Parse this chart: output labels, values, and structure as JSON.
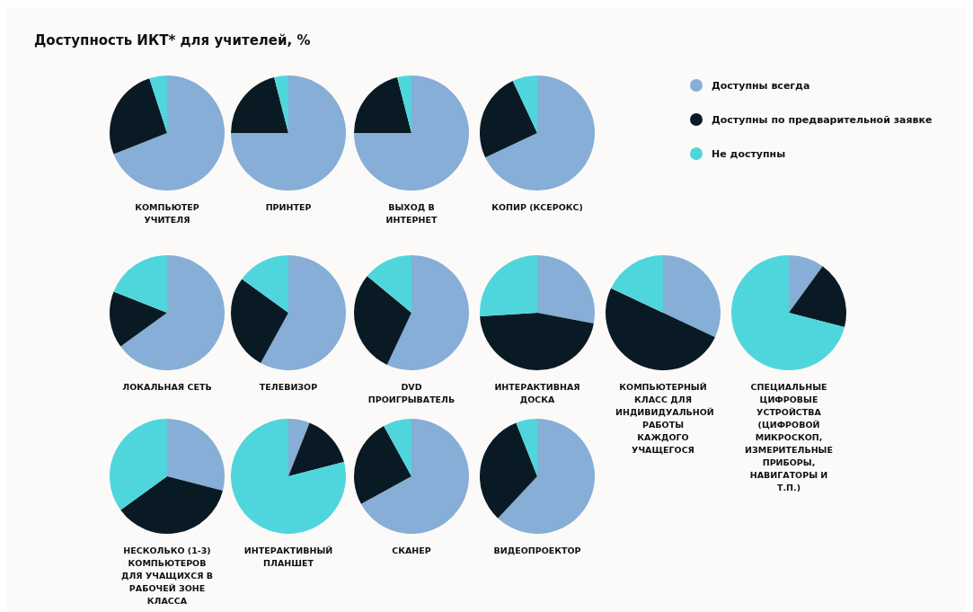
{
  "chart_data": [
    {
      "type": "pie",
      "title": "Доступность ИКТ* для учителей, %",
      "xlabel": "КОМПЬЮТЕР УЧИТЕЛЯ",
      "categories": [
        "Доступны всегда",
        "Доступны по предварительной заявке",
        "Не доступны"
      ],
      "values": [
        69,
        26,
        5
      ],
      "colors": [
        "#86aed6",
        "#0a1a24",
        "#4fd6dc"
      ],
      "legend": "right"
    },
    {
      "type": "pie",
      "xlabel": "ПРИНТЕР",
      "categories": [
        null,
        null,
        null
      ],
      "values": [
        75,
        21,
        4
      ],
      "colors": [
        "#86aed6",
        "#0a1a24",
        "#4fd6dc"
      ]
    },
    {
      "type": "pie",
      "xlabel": "ВЫХОД В ИНТЕРНЕТ",
      "categories": [
        null,
        null,
        null
      ],
      "values": [
        75,
        21,
        4
      ],
      "colors": [
        "#86aed6",
        "#0a1a24",
        "#4fd6dc"
      ]
    },
    {
      "type": "pie",
      "xlabel": "КОПИР (КСЕРОКС)",
      "categories": [
        null,
        null,
        null
      ],
      "values": [
        68,
        25,
        7
      ],
      "colors": [
        "#86aed6",
        "#0a1a24",
        "#4fd6dc"
      ]
    },
    {
      "type": "pie",
      "xlabel": "ЛОКАЛЬНАЯ СЕТЬ",
      "categories": [
        null,
        null,
        null
      ],
      "values": [
        65,
        16,
        19
      ],
      "colors": [
        "#86aed6",
        "#0a1a24",
        "#4fd6dc"
      ]
    },
    {
      "type": "pie",
      "xlabel": "ТЕЛЕВИЗОР",
      "categories": [
        null,
        null,
        null
      ],
      "values": [
        58,
        27,
        15
      ],
      "colors": [
        "#86aed6",
        "#0a1a24",
        "#4fd6dc"
      ]
    },
    {
      "type": "pie",
      "xlabel": "DVD ПРОИГРЫВАТЕЛЬ",
      "categories": [
        null,
        null,
        null
      ],
      "values": [
        57,
        29,
        14
      ],
      "colors": [
        "#86aed6",
        "#0a1a24",
        "#4fd6dc"
      ]
    },
    {
      "type": "pie",
      "xlabel": "ИНТЕРАКТИВНАЯ ДОСКА",
      "categories": [
        null,
        null,
        null
      ],
      "values": [
        28,
        46,
        26
      ],
      "colors": [
        "#86aed6",
        "#0a1a24",
        "#4fd6dc"
      ]
    },
    {
      "type": "pie",
      "xlabel": "КОМПЬЮТЕРНЫЙ КЛАСС ДЛЯ ИНДИВИДУАЛЬНОЙ РАБОТЫ КАЖДОГО УЧАЩЕГОСЯ",
      "categories": [
        null,
        null,
        null
      ],
      "values": [
        32,
        50,
        18
      ],
      "colors": [
        "#86aed6",
        "#0a1a24",
        "#4fd6dc"
      ]
    },
    {
      "type": "pie",
      "xlabel": "СПЕЦИАЛЬНЫЕ ЦИФРОВЫЕ УСТРОЙСТВА (ЦИФРОВОЙ МИКРОСКОП, ИЗМЕРИТЕЛЬНЫЕ ПРИБОРЫ, НАВИГАТОРЫ И Т.П.)",
      "categories": [
        null,
        null,
        null
      ],
      "values": [
        10,
        19,
        71
      ],
      "colors": [
        "#86aed6",
        "#0a1a24",
        "#4fd6dc"
      ]
    },
    {
      "type": "pie",
      "xlabel": "НЕСКОЛЬКО (1-3) КОМПЬЮТЕРОВ ДЛЯ УЧАЩИХСЯ В РАБОЧЕЙ ЗОНЕ КЛАССА",
      "categories": [
        null,
        null,
        null
      ],
      "values": [
        29,
        36,
        35
      ],
      "colors": [
        "#86aed6",
        "#0a1a24",
        "#4fd6dc"
      ]
    },
    {
      "type": "pie",
      "xlabel": "ИНТЕРАКТИВНЫЙ ПЛАНШЕТ",
      "categories": [
        null,
        null,
        null
      ],
      "values": [
        6,
        15,
        79
      ],
      "colors": [
        "#86aed6",
        "#0a1a24",
        "#4fd6dc"
      ]
    },
    {
      "type": "pie",
      "xlabel": "СКАНЕР",
      "categories": [
        null,
        null,
        null
      ],
      "values": [
        67,
        25,
        8
      ],
      "colors": [
        "#86aed6",
        "#0a1a24",
        "#4fd6dc"
      ]
    },
    {
      "type": "pie",
      "xlabel": "ВИДЕОПРОЕКТОР",
      "categories": [
        null,
        null,
        null
      ],
      "values": [
        62,
        32,
        6
      ],
      "colors": [
        "#86aed6",
        "#0a1a24",
        "#4fd6dc"
      ]
    }
  ]
}
